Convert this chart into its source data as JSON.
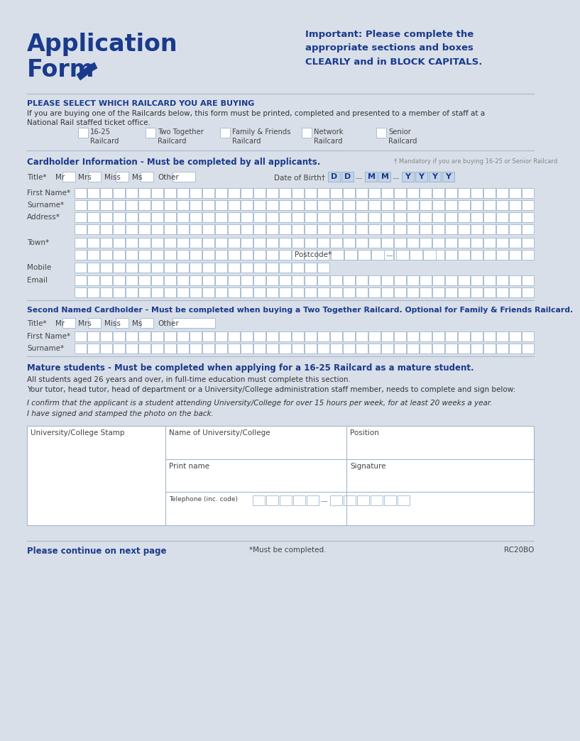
{
  "bg_color": "#d8dfe8",
  "white": "#ffffff",
  "dark_blue": "#1a3a8c",
  "light_blue": "#8ab0d0",
  "cell_blue": "#c5d3e8",
  "gray_text": "#666666",
  "title1": "Application",
  "title2": "Form",
  "important_text": "Important: Please complete the\nappropriate sections and boxes\nCLEARLY and in BLOCK CAPITALS.",
  "section1_title": "PLEASE SELECT WHICH RAILCARD YOU ARE BUYING",
  "section1_body1": "If you are buying one of the Railcards below, this form must be printed, completed and presented to a member of staff at a",
  "section1_body2": "National Rail staffed ticket office.",
  "railcards": [
    "16-25\nRailcard",
    "Two Together\nRailcard",
    "Family & Friends\nRailcard",
    "Network\nRailcard",
    "Senior\nRailcard"
  ],
  "section2_title": "Cardholder Information - Must be completed by all applicants.",
  "section2_note": "† Mandatory if you are buying 16-25 or Senior Railcard",
  "title_options": [
    "Mr",
    "Mrs",
    "Miss",
    "Ms",
    "Other"
  ],
  "dob_label": "Date of Birth†",
  "dob_letters": [
    "D",
    "D",
    "—",
    "M",
    "M",
    "—",
    "Y",
    "Y",
    "Y",
    "Y"
  ],
  "postcode_label": "Postcode*",
  "section3_title": "Second Named Cardholder - Must be completed when buying a Two Together Railcard. Optional for Family & Friends Railcard.",
  "title_options2": [
    "Mr",
    "Mrs",
    "Miss",
    "Ms"
  ],
  "section4_title": "Mature students - Must be completed when applying for a 16-25 Railcard as a mature student.",
  "section4_body1": "All students aged 26 years and over, in full-time education must complete this section.",
  "section4_body2": "Your tutor, head tutor, head of department or a University/College administration staff member, needs to complete and sign below:",
  "section4_italic1": "I confirm that the applicant is a student attending University/College for over 15 hours per week, for at least 20 weeks a year.",
  "section4_italic2": "I have signed and stamped the photo on the back.",
  "table_labels": [
    "University/College Stamp",
    "Name of University/College",
    "Position",
    "Print name",
    "Signature",
    "Telephone (inc. code)"
  ],
  "footer_left": "Please continue on next page",
  "footer_mid": "*Must be completed.",
  "footer_right": "RC20BO"
}
